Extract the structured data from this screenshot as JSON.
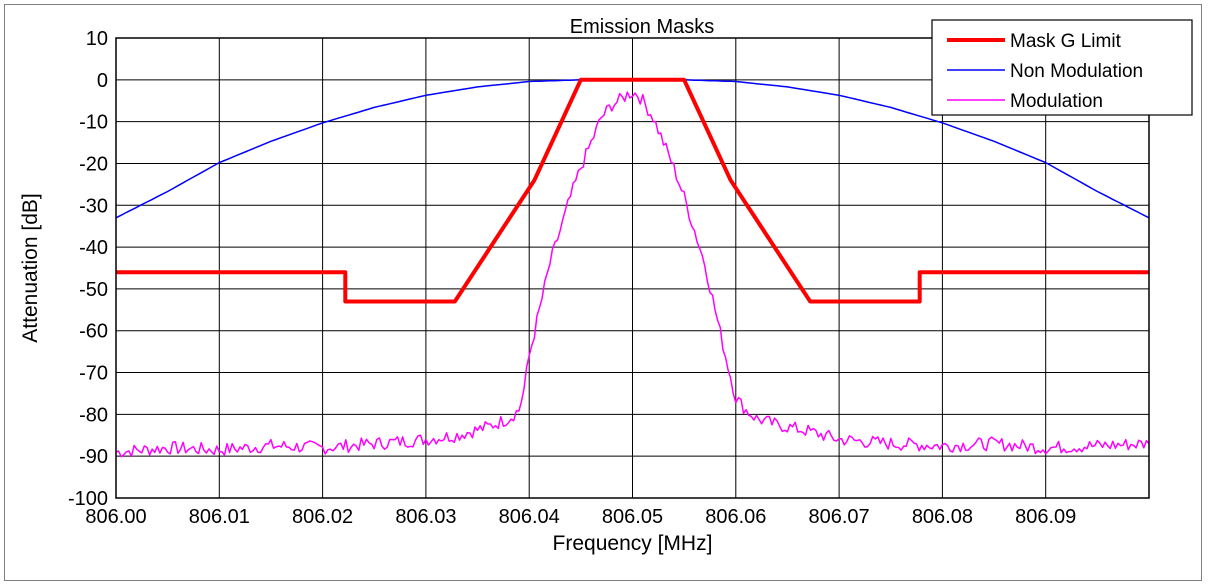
{
  "chart_data": {
    "type": "line",
    "title": "Emission Masks",
    "xlabel": "Frequency [MHz]",
    "ylabel": "Attenuation [dB]",
    "xlim": [
      806.0,
      806.1
    ],
    "ylim": [
      -100,
      10
    ],
    "x_ticks": [
      "806.00",
      "806.01",
      "806.02",
      "806.03",
      "806.04",
      "806.05",
      "806.06",
      "806.07",
      "806.08",
      "806.09"
    ],
    "y_ticks": [
      "10",
      "0",
      "-10",
      "-20",
      "-30",
      "-40",
      "-50",
      "-60",
      "-70",
      "-80",
      "-90",
      "-100"
    ],
    "grid": true,
    "legend_position": "top-right",
    "series": [
      {
        "name": "Mask G Limit",
        "color": "#ff0000",
        "x": [
          806.0,
          806.0222,
          806.0222,
          806.0328,
          806.0405,
          806.045,
          806.055,
          806.0595,
          806.0672,
          806.0778,
          806.0778,
          806.1
        ],
        "y": [
          -46,
          -46,
          -53,
          -53,
          -24,
          0,
          0,
          -24,
          -53,
          -53,
          -46,
          -46
        ]
      },
      {
        "name": "Non Modulation",
        "color": "#0000ff",
        "x": [
          806.0,
          806.005,
          806.01,
          806.015,
          806.02,
          806.025,
          806.03,
          806.035,
          806.04,
          806.045,
          806.05,
          806.055,
          806.06,
          806.065,
          806.07,
          806.075,
          806.08,
          806.085,
          806.09,
          806.095,
          806.1
        ],
        "y": [
          -33,
          -26.7,
          -19.8,
          -14.7,
          -10.3,
          -6.6,
          -3.7,
          -1.7,
          -0.4,
          0,
          0,
          0,
          -0.4,
          -1.7,
          -3.7,
          -6.6,
          -10.3,
          -14.7,
          -19.8,
          -26.7,
          -33
        ]
      },
      {
        "name": "Modulation",
        "color": "#ff00ff",
        "x": [
          806.0,
          806.005,
          806.01,
          806.015,
          806.02,
          806.025,
          806.03,
          806.033,
          806.036,
          806.038,
          806.039,
          806.0395,
          806.04,
          806.041,
          806.042,
          806.043,
          806.044,
          806.045,
          806.046,
          806.047,
          806.048,
          806.049,
          806.0495,
          806.05,
          806.0505,
          806.051,
          806.052,
          806.053,
          806.054,
          806.055,
          806.056,
          806.057,
          806.058,
          806.059,
          806.0595,
          806.06,
          806.061,
          806.062,
          806.064,
          806.067,
          806.07,
          806.075,
          806.08,
          806.085,
          806.09,
          806.095,
          806.1
        ],
        "y": [
          -89,
          -88,
          -88.5,
          -87.5,
          -88,
          -87,
          -86,
          -85,
          -83,
          -81,
          -79,
          -74,
          -66,
          -55,
          -44,
          -36,
          -28,
          -21,
          -15,
          -9,
          -6,
          -4.5,
          -3.5,
          -3,
          -3.5,
          -5,
          -9,
          -15,
          -21,
          -28,
          -36,
          -44,
          -55,
          -66,
          -71,
          -76,
          -79,
          -81,
          -82.5,
          -84,
          -86,
          -87,
          -87.5,
          -87,
          -88,
          -87.5,
          -87
        ]
      }
    ]
  }
}
